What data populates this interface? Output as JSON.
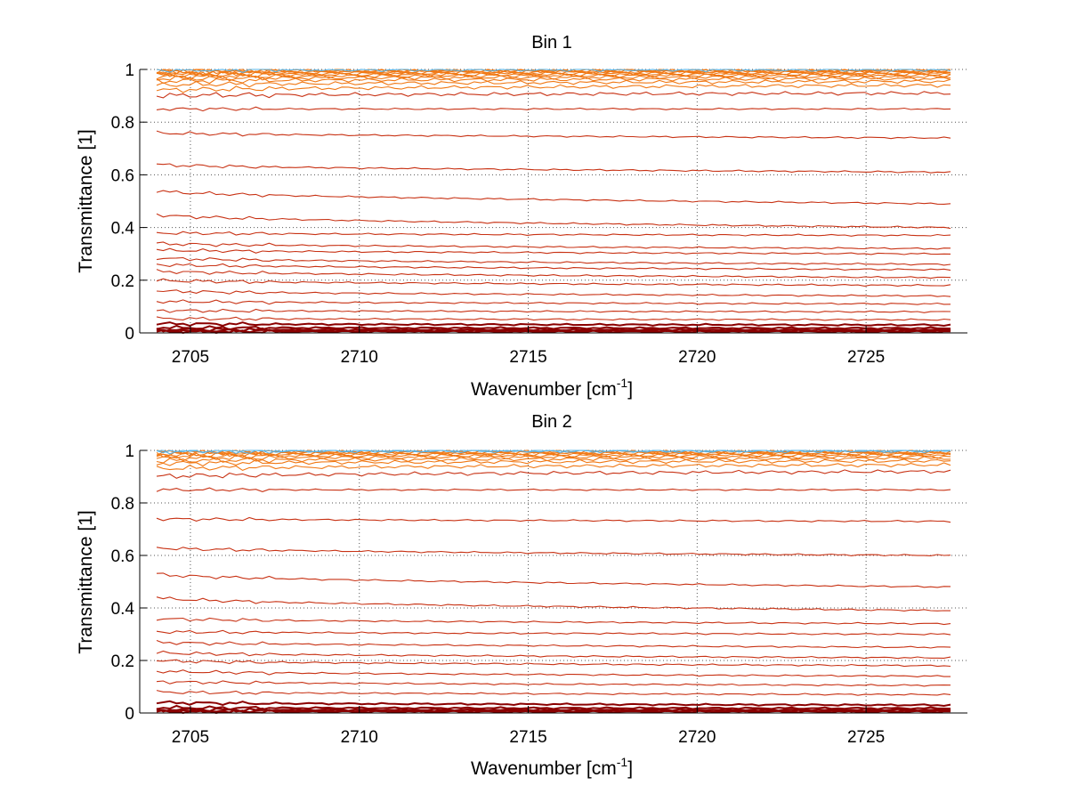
{
  "chart_data": [
    {
      "type": "line",
      "title": "Bin 1",
      "xlabel": "Wavenumber [cm",
      "xlabel_sup": "-1",
      "xlabel_end": "]",
      "ylabel": "Transmittance [1]",
      "xlim": [
        2703.5,
        2728
      ],
      "ylim": [
        0,
        1
      ],
      "x_range": [
        2704,
        2727.5
      ],
      "xticks": [
        2705,
        2710,
        2715,
        2720,
        2725
      ],
      "yticks": [
        0,
        0.2,
        0.4,
        0.6,
        0.8,
        1
      ],
      "xtick_labels": [
        "2705",
        "2710",
        "2715",
        "2720",
        "2725"
      ],
      "ytick_labels": [
        "0",
        "0.2",
        "0.4",
        "0.6",
        "0.8",
        "1"
      ],
      "grid": "dotted",
      "colors": [
        "#8b0000",
        "#c83214",
        "#f07814",
        "#5ab4e6"
      ],
      "series": [
        {
          "start": 0.005,
          "end": 0.005
        },
        {
          "start": 0.008,
          "end": 0.008
        },
        {
          "start": 0.012,
          "end": 0.012
        },
        {
          "start": 0.02,
          "end": 0.018
        },
        {
          "start": 0.035,
          "end": 0.03
        },
        {
          "start": 0.055,
          "end": 0.05
        },
        {
          "start": 0.085,
          "end": 0.08
        },
        {
          "start": 0.12,
          "end": 0.11
        },
        {
          "start": 0.16,
          "end": 0.14
        },
        {
          "start": 0.2,
          "end": 0.18
        },
        {
          "start": 0.235,
          "end": 0.21
        },
        {
          "start": 0.26,
          "end": 0.24
        },
        {
          "start": 0.285,
          "end": 0.26
        },
        {
          "start": 0.315,
          "end": 0.3
        },
        {
          "start": 0.34,
          "end": 0.32
        },
        {
          "start": 0.38,
          "end": 0.37
        },
        {
          "start": 0.45,
          "end": 0.4
        },
        {
          "start": 0.54,
          "end": 0.49
        },
        {
          "start": 0.64,
          "end": 0.61
        },
        {
          "start": 0.76,
          "end": 0.74
        },
        {
          "start": 0.85,
          "end": 0.85
        },
        {
          "start": 0.9,
          "end": 0.91
        },
        {
          "start": 0.92,
          "end": 0.94
        },
        {
          "start": 0.94,
          "end": 0.955
        },
        {
          "start": 0.955,
          "end": 0.965
        },
        {
          "start": 0.965,
          "end": 0.972
        },
        {
          "start": 0.972,
          "end": 0.978
        },
        {
          "start": 0.978,
          "end": 0.982
        },
        {
          "start": 0.983,
          "end": 0.986
        },
        {
          "start": 0.987,
          "end": 0.99
        },
        {
          "start": 0.99,
          "end": 0.993
        },
        {
          "start": 0.993,
          "end": 0.995
        },
        {
          "start": 0.996,
          "end": 0.997
        },
        {
          "start": 0.998,
          "end": 0.999
        }
      ]
    },
    {
      "type": "line",
      "title": "Bin 2",
      "xlabel": "Wavenumber [cm",
      "xlabel_sup": "-1",
      "xlabel_end": "]",
      "ylabel": "Transmittance [1]",
      "xlim": [
        2703.5,
        2728
      ],
      "ylim": [
        0,
        1
      ],
      "x_range": [
        2704,
        2727.5
      ],
      "xticks": [
        2705,
        2710,
        2715,
        2720,
        2725
      ],
      "yticks": [
        0,
        0.2,
        0.4,
        0.6,
        0.8,
        1
      ],
      "xtick_labels": [
        "2705",
        "2710",
        "2715",
        "2720",
        "2725"
      ],
      "ytick_labels": [
        "0",
        "0.2",
        "0.4",
        "0.6",
        "0.8",
        "1"
      ],
      "grid": "dotted",
      "colors": [
        "#8b0000",
        "#c83214",
        "#f07814",
        "#5ab4e6"
      ],
      "series": [
        {
          "start": 0.005,
          "end": 0.005
        },
        {
          "start": 0.008,
          "end": 0.008
        },
        {
          "start": 0.012,
          "end": 0.012
        },
        {
          "start": 0.02,
          "end": 0.018
        },
        {
          "start": 0.04,
          "end": 0.03
        },
        {
          "start": 0.08,
          "end": 0.07
        },
        {
          "start": 0.12,
          "end": 0.105
        },
        {
          "start": 0.16,
          "end": 0.14
        },
        {
          "start": 0.2,
          "end": 0.18
        },
        {
          "start": 0.23,
          "end": 0.21
        },
        {
          "start": 0.27,
          "end": 0.25
        },
        {
          "start": 0.31,
          "end": 0.3
        },
        {
          "start": 0.36,
          "end": 0.34
        },
        {
          "start": 0.44,
          "end": 0.39
        },
        {
          "start": 0.53,
          "end": 0.48
        },
        {
          "start": 0.63,
          "end": 0.6
        },
        {
          "start": 0.74,
          "end": 0.73
        },
        {
          "start": 0.85,
          "end": 0.85
        },
        {
          "start": 0.9,
          "end": 0.92
        },
        {
          "start": 0.93,
          "end": 0.945
        },
        {
          "start": 0.95,
          "end": 0.96
        },
        {
          "start": 0.96,
          "end": 0.97
        },
        {
          "start": 0.97,
          "end": 0.977
        },
        {
          "start": 0.977,
          "end": 0.982
        },
        {
          "start": 0.983,
          "end": 0.987
        },
        {
          "start": 0.987,
          "end": 0.99
        },
        {
          "start": 0.991,
          "end": 0.993
        },
        {
          "start": 0.994,
          "end": 0.996
        },
        {
          "start": 0.997,
          "end": 0.998
        },
        {
          "start": 0.999,
          "end": 0.999
        }
      ]
    }
  ]
}
